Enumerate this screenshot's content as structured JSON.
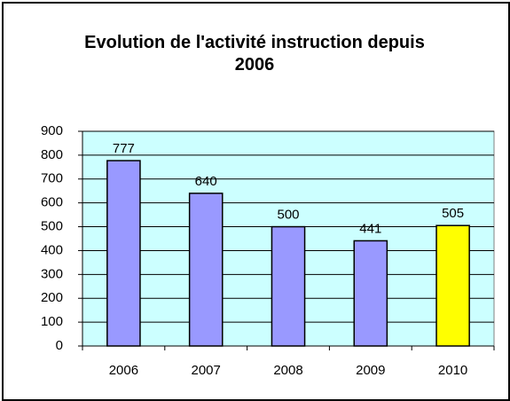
{
  "chart_data": {
    "type": "bar",
    "title": "Evolution de l'activité instruction depuis 2006",
    "categories": [
      "2006",
      "2007",
      "2008",
      "2009",
      "2010"
    ],
    "values": [
      777,
      640,
      500,
      441,
      505
    ],
    "colors": [
      "#9999ff",
      "#9999ff",
      "#9999ff",
      "#9999ff",
      "#ffff00"
    ],
    "ylim": [
      0,
      900
    ],
    "yticks": [
      0,
      100,
      200,
      300,
      400,
      500,
      600,
      700,
      800,
      900
    ],
    "grid": true
  }
}
